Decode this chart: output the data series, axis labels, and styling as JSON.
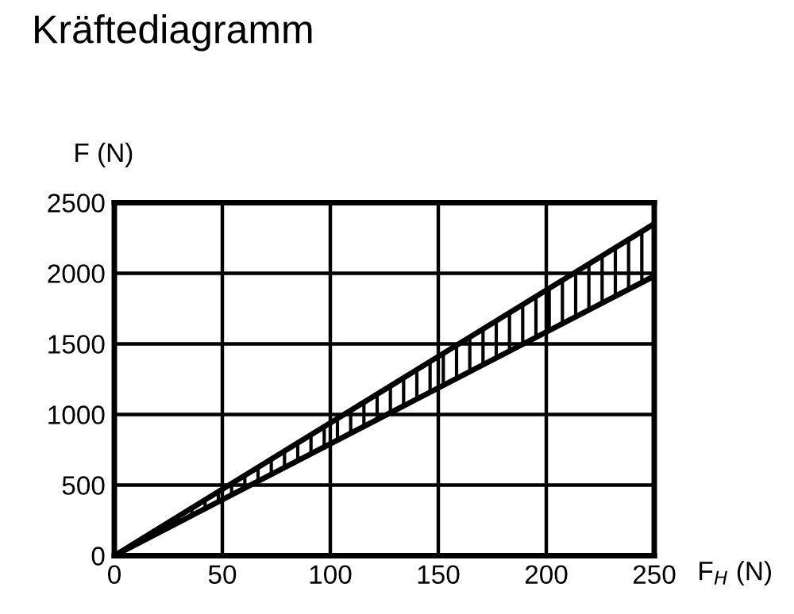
{
  "chart_data": {
    "type": "line",
    "title": "Kräftediagramm",
    "xlabel": "F$_{H}$ (N)",
    "ylabel": "F (N)",
    "x": [
      0,
      250
    ],
    "series": [
      {
        "color": "#000000",
        "values": [
          0,
          2350
        ],
        "lower": [
          0,
          1980
        ],
        "upper": [
          0,
          2350
        ]
      },
      {
        "color": "#000000",
        "values": [
          0,
          1980
        ]
      }
    ],
    "xlim": [
      0,
      250
    ],
    "ylim": [
      0,
      2500
    ],
    "xticks": [
      0,
      50,
      100,
      150,
      200,
      250
    ],
    "yticks": [
      0,
      500,
      1000,
      1500,
      2000,
      2500
    ],
    "grid": true,
    "marker": "none",
    "line_style": "solid"
  }
}
